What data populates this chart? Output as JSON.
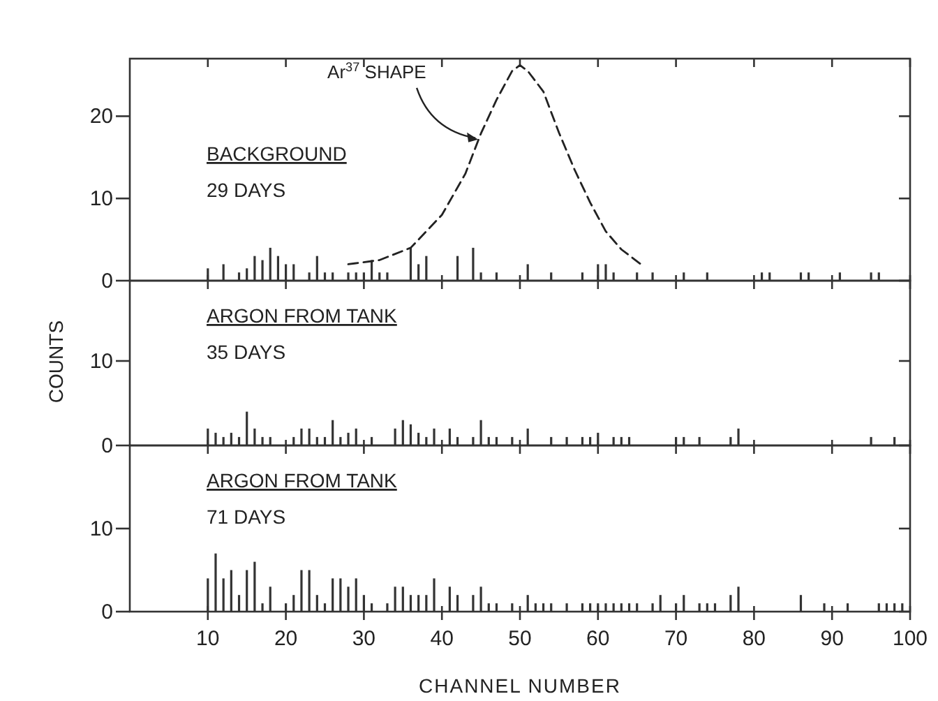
{
  "chart_data": [
    {
      "type": "bar",
      "title": "BACKGROUND",
      "subtitle": "29 DAYS",
      "xlim": [
        0,
        100
      ],
      "ylim": [
        0,
        27
      ],
      "xticks": [
        10,
        20,
        30,
        40,
        50,
        60,
        70,
        80,
        90,
        100
      ],
      "yticks": [
        0,
        10,
        20
      ],
      "tick_labels": "y",
      "grid": false,
      "annotations": [
        {
          "text": "Ar$^{37}$ SHAPE",
          "x": 45,
          "y": 17
        }
      ],
      "series": [
        {
          "color": "#333333",
          "x": [
            10,
            12,
            14,
            15,
            16,
            17,
            18,
            19,
            20,
            21,
            23,
            24,
            25,
            26,
            28,
            29,
            30,
            31,
            32,
            33,
            36,
            37,
            38,
            42,
            44,
            45,
            47,
            51,
            54,
            58,
            60,
            61,
            62,
            65,
            67,
            71,
            74,
            81,
            82,
            86,
            87,
            91,
            95,
            96
          ],
          "values": [
            1.5,
            2,
            1,
            1.5,
            3,
            2.5,
            4,
            3,
            2,
            2,
            1,
            3,
            1,
            1,
            1,
            1,
            1,
            2.5,
            1,
            1,
            4,
            2,
            3,
            3,
            4,
            1,
            1,
            2,
            1,
            1,
            2,
            2,
            1,
            1,
            1,
            1,
            1,
            1,
            1,
            1,
            1,
            1,
            1,
            1
          ]
        },
        {
          "type": "line",
          "line_style": "dashed",
          "marker": "none",
          "color": "#222222",
          "x": [
            28,
            32,
            36,
            40,
            43,
            45,
            47,
            49,
            50,
            51,
            53,
            55,
            57,
            59,
            61,
            63,
            65.5
          ],
          "values": [
            2,
            2.5,
            4,
            8,
            13,
            17.9,
            22,
            25.5,
            26.2,
            25.5,
            23,
            18,
            13.5,
            9.5,
            6,
            3.8,
            2
          ]
        }
      ]
    },
    {
      "type": "bar",
      "title": "ARGON FROM TANK",
      "subtitle": "35 DAYS",
      "ylabel": "COUNTS",
      "xlim": [
        0,
        100
      ],
      "ylim": [
        0,
        19.5
      ],
      "xticks": [
        10,
        20,
        30,
        40,
        50,
        60,
        70,
        80,
        90,
        100
      ],
      "yticks": [
        0,
        10
      ],
      "tick_labels": "y",
      "grid": false,
      "color": "#333333",
      "x": [
        10,
        11,
        12,
        13,
        14,
        15,
        16,
        17,
        18,
        21,
        22,
        23,
        24,
        25,
        26,
        27,
        28,
        29,
        31,
        34,
        35,
        36,
        37,
        38,
        39,
        41,
        42,
        44,
        45,
        46,
        47,
        49,
        51,
        54,
        56,
        58,
        59,
        60,
        62,
        63,
        64,
        70,
        71,
        73,
        77,
        78,
        95,
        98
      ],
      "values": [
        2,
        1.5,
        1,
        1.5,
        1,
        4,
        2,
        1,
        1,
        1,
        2,
        2,
        1,
        1,
        3,
        1,
        1.5,
        2,
        1,
        2,
        3,
        2.5,
        1.5,
        1,
        2,
        2,
        1,
        1,
        3,
        1,
        1,
        1,
        2,
        1,
        1,
        1,
        1,
        1.5,
        1,
        1,
        1,
        1,
        1,
        1,
        1,
        2,
        1,
        1
      ]
    },
    {
      "type": "bar",
      "title": "ARGON FROM TANK",
      "subtitle": "71 DAYS",
      "xlabel": "CHANNEL NUMBER",
      "xlim": [
        0,
        100
      ],
      "ylim": [
        0,
        20
      ],
      "xticks": [
        10,
        20,
        30,
        40,
        50,
        60,
        70,
        80,
        90,
        100
      ],
      "yticks": [
        0,
        10
      ],
      "grid": false,
      "color": "#333333",
      "x": [
        10,
        11,
        12,
        13,
        14,
        15,
        16,
        17,
        18,
        20,
        21,
        22,
        23,
        24,
        25,
        26,
        27,
        28,
        29,
        30,
        31,
        33,
        34,
        35,
        36,
        37,
        38,
        39,
        41,
        42,
        44,
        45,
        46,
        47,
        49,
        51,
        52,
        53,
        54,
        56,
        58,
        59,
        60,
        61,
        62,
        63,
        64,
        65,
        67,
        68,
        70,
        71,
        73,
        74,
        75,
        77,
        78,
        86,
        89,
        92,
        96,
        97,
        98,
        99
      ],
      "values": [
        4,
        7,
        4,
        5,
        2,
        5,
        6,
        1,
        3,
        1,
        2,
        5,
        5,
        2,
        1,
        4,
        4,
        3,
        4,
        2,
        1,
        1,
        3,
        3,
        2,
        2,
        2,
        4,
        3,
        2,
        2,
        3,
        1,
        1,
        1,
        2,
        1,
        1,
        1,
        1,
        1,
        1,
        1,
        1,
        1,
        1,
        1,
        1,
        1,
        2,
        1,
        2,
        1,
        1,
        1,
        2,
        3,
        2,
        1,
        1,
        1,
        1,
        1,
        1
      ]
    }
  ]
}
